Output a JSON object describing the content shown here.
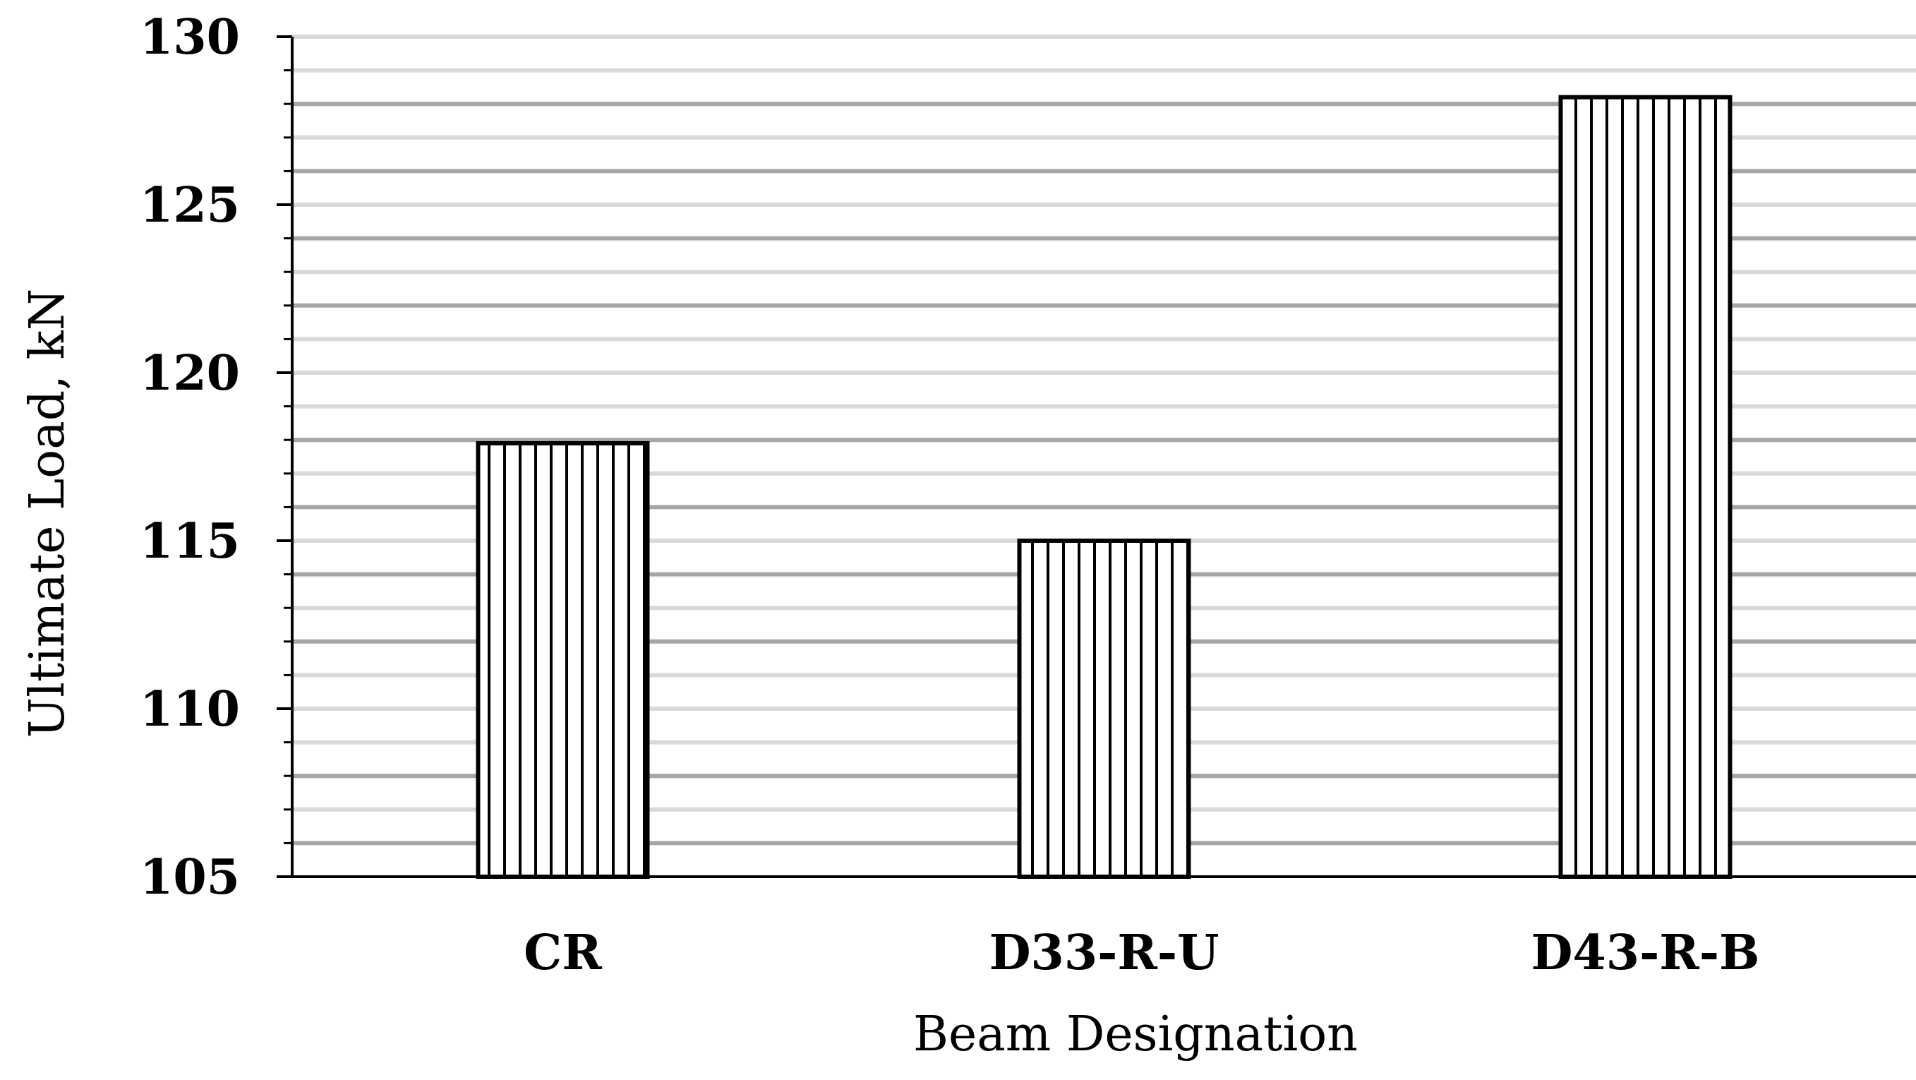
{
  "chart_data": {
    "type": "bar",
    "categories": [
      "CR",
      "D33-R-U",
      "D43-R-B"
    ],
    "series": [
      {
        "values": [
          117.9,
          115.0,
          128.2
        ]
      }
    ],
    "xlabel": "Beam Designation",
    "ylabel": "Ultimate Load, kN",
    "ylim": [
      105,
      130
    ],
    "yticks": [
      105,
      110,
      115,
      120,
      125,
      130
    ],
    "ytick_labels": [
      "105",
      "110",
      "115",
      "120",
      "125",
      "130"
    ],
    "minor_step": 1,
    "grid": true,
    "legend": "none",
    "bar_pattern": "vertical-stripes",
    "colors": {
      "bar_fill": "#ffffff",
      "bar_stroke": "#000000",
      "gridline": "#a6a6a6",
      "gridline_light": "#d9d9d9",
      "axis": "#000000"
    }
  }
}
